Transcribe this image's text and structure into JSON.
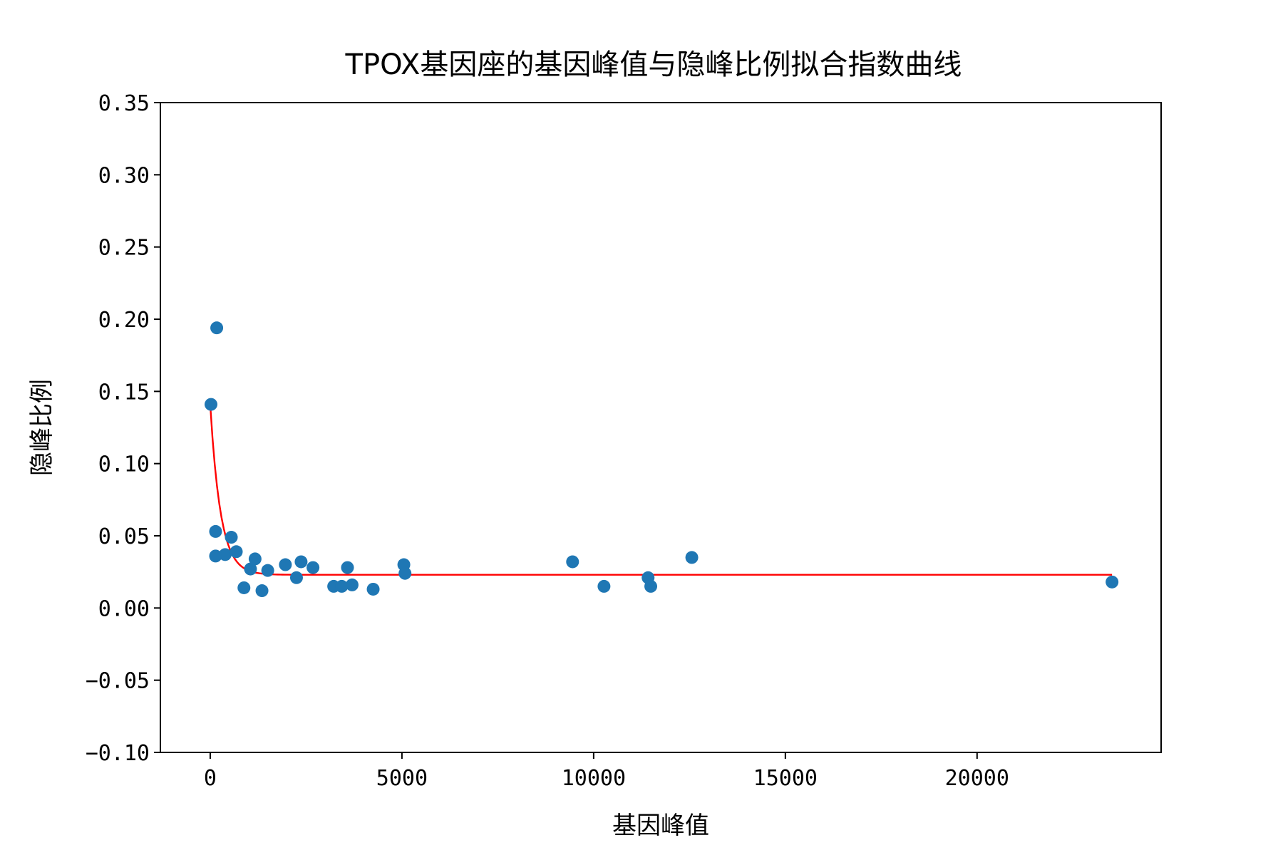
{
  "chart_data": {
    "type": "scatter",
    "title": "TPOX基因座的基因峰值与隐峰比例拟合指数曲线",
    "xlabel": "基因峰值",
    "ylabel": "隐峰比例",
    "xlim": [
      -1300,
      24800
    ],
    "ylim": [
      -0.1,
      0.35
    ],
    "xticks": [
      0,
      5000,
      10000,
      15000,
      20000
    ],
    "xtick_labels": [
      "0",
      "5000",
      "10000",
      "15000",
      "20000"
    ],
    "yticks": [
      -0.1,
      -0.05,
      0.0,
      0.05,
      0.1,
      0.15,
      0.2,
      0.25,
      0.3,
      0.35
    ],
    "ytick_labels": [
      "−0.10",
      "−0.05",
      "0.00",
      "0.05",
      "0.10",
      "0.15",
      "0.20",
      "0.25",
      "0.30",
      "0.35"
    ],
    "grid": false,
    "series": [
      {
        "name": "scatter",
        "kind": "scatter",
        "color": "#1f77b4",
        "points": [
          [
            20,
            0.141
          ],
          [
            170,
            0.194
          ],
          [
            140,
            0.053
          ],
          [
            140,
            0.036
          ],
          [
            390,
            0.037
          ],
          [
            550,
            0.049
          ],
          [
            680,
            0.039
          ],
          [
            880,
            0.014
          ],
          [
            1050,
            0.027
          ],
          [
            1170,
            0.034
          ],
          [
            1350,
            0.012
          ],
          [
            1500,
            0.026
          ],
          [
            1960,
            0.03
          ],
          [
            2250,
            0.021
          ],
          [
            2370,
            0.032
          ],
          [
            2680,
            0.028
          ],
          [
            3220,
            0.015
          ],
          [
            3430,
            0.015
          ],
          [
            3580,
            0.028
          ],
          [
            3700,
            0.016
          ],
          [
            4250,
            0.013
          ],
          [
            5050,
            0.03
          ],
          [
            5080,
            0.024
          ],
          [
            9450,
            0.032
          ],
          [
            10270,
            0.015
          ],
          [
            11420,
            0.021
          ],
          [
            11490,
            0.015
          ],
          [
            12560,
            0.035
          ],
          [
            23520,
            0.018
          ]
        ]
      },
      {
        "name": "exp-fit",
        "kind": "line",
        "color": "#ff0000",
        "model": {
          "a": 0.118,
          "b": 0.0037,
          "c": 0.023
        },
        "x_range": [
          0,
          23520
        ]
      }
    ]
  }
}
